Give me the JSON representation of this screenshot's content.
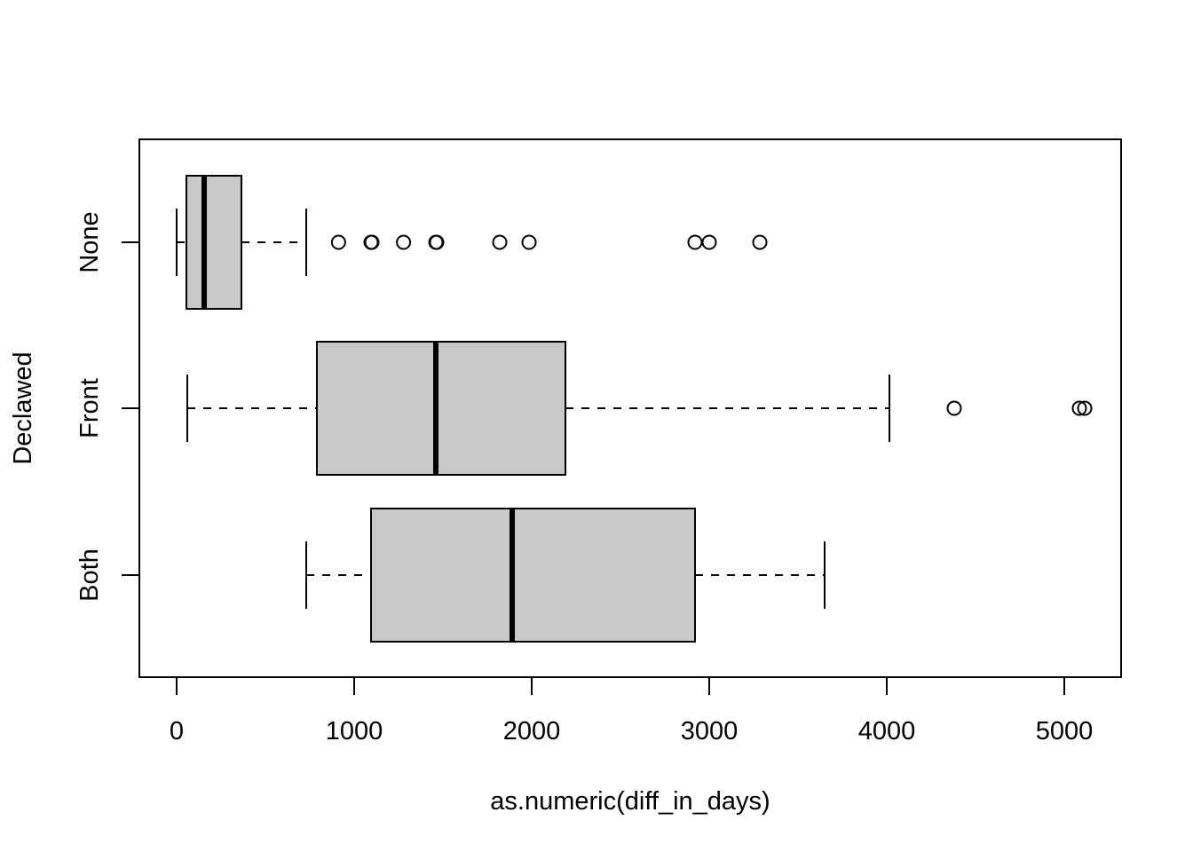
{
  "chart_data": {
    "type": "boxplot",
    "orientation": "horizontal",
    "title": "",
    "xlabel": "as.numeric(diff_in_days)",
    "ylabel": "Declawed",
    "xlim": [
      -210,
      5320
    ],
    "xticks": [
      0,
      1000,
      2000,
      3000,
      4000,
      5000
    ],
    "xtick_labels": [
      "0",
      "1000",
      "2000",
      "3000",
      "4000",
      "5000"
    ],
    "grid": false,
    "box_fill": "#c9c9c9",
    "line_color": "#000000",
    "groups": [
      {
        "label": "None",
        "whisker_low": 0,
        "q1": 55,
        "median": 155,
        "q3": 365,
        "whisker_high": 730,
        "outliers": [
          912,
          1095,
          1100,
          1278,
          1460,
          1465,
          1820,
          1985,
          2920,
          3000,
          3285
        ]
      },
      {
        "label": "Front",
        "whisker_low": 60,
        "q1": 790,
        "median": 1460,
        "q3": 2190,
        "whisker_high": 4015,
        "outliers": [
          4380,
          5085,
          5115
        ]
      },
      {
        "label": "Both",
        "whisker_low": 730,
        "q1": 1095,
        "median": 1890,
        "q3": 2920,
        "whisker_high": 3650,
        "outliers": []
      }
    ]
  }
}
